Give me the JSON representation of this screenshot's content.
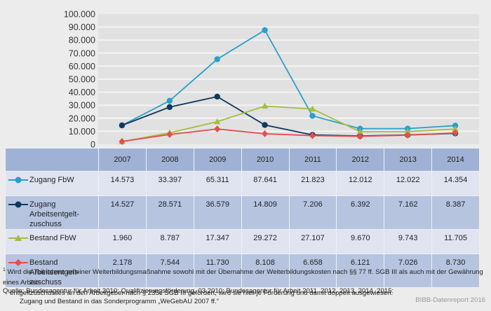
{
  "chart_data": {
    "type": "line",
    "title": "",
    "xlabel": "",
    "ylabel": "",
    "ylim": [
      0,
      100000
    ],
    "y_ticks": [
      0,
      10000,
      20000,
      30000,
      40000,
      50000,
      60000,
      70000,
      80000,
      90000,
      100000
    ],
    "y_tick_labels": [
      "0",
      "10.000",
      "20.000",
      "30.000",
      "40.000",
      "50.000",
      "60.000",
      "70.000",
      "80.000",
      "90.000",
      "100.000"
    ],
    "grid": true,
    "legend_placement": "table-left",
    "categories": [
      "2007",
      "2008",
      "2009",
      "2010",
      "2011",
      "2012",
      "2013",
      "2014"
    ],
    "series": [
      {
        "name": "Zugang FbW",
        "marker": "circle",
        "color": "#2a9fc8",
        "values": [
          14573,
          33397,
          65311,
          87641,
          21823,
          12012,
          12022,
          14354
        ],
        "labels": [
          "14.573",
          "33.397",
          "65.311",
          "87.641",
          "21.823",
          "12.012",
          "12.022",
          "14.354"
        ]
      },
      {
        "name": "Zugang Arbeitsentgelt-zuschuss",
        "marker": "circle",
        "color": "#0d3a5e",
        "values": [
          14527,
          28571,
          36579,
          14809,
          7206,
          6392,
          7162,
          8387
        ],
        "labels": [
          "14.527",
          "28.571",
          "36.579",
          "14.809",
          "7.206",
          "6.392",
          "7.162",
          "8.387"
        ]
      },
      {
        "name": "Bestand FbW",
        "marker": "triangle",
        "color": "#a4bd3c",
        "values": [
          1960,
          8787,
          17347,
          29272,
          27107,
          9670,
          9743,
          11705
        ],
        "labels": [
          "1.960",
          "8.787",
          "17.347",
          "29.272",
          "27.107",
          "9.670",
          "9.743",
          "11.705"
        ]
      },
      {
        "name": "Bestand Arbeitsentgelt-zuschuss",
        "marker": "diamond",
        "color": "#e64d4b",
        "values": [
          2178,
          7544,
          11730,
          8108,
          6658,
          6121,
          7026,
          8730
        ],
        "labels": [
          "2.178",
          "7.544",
          "11.730",
          "8.108",
          "6.658",
          "6.121",
          "7.026",
          "8.730"
        ]
      }
    ]
  },
  "table": {
    "rows": [
      {
        "label_line1": "Zugang FbW",
        "label_line2": ""
      },
      {
        "label_line1": "Zugang Arbeitsentgelt-",
        "label_line2": "zuschuss"
      },
      {
        "label_line1": "Bestand FbW",
        "label_line2": ""
      },
      {
        "label_line1": "Bestand Arbeitsentgelt-",
        "label_line2": "zuschuss"
      }
    ]
  },
  "footnote": {
    "marker": "1",
    "line1": "Wird die Teilnahme an einer Weiterbildungsmaßnahme sowohl mit der Übernahme der Weiterbildungskosten nach §§ 77 ff. SGB III als auch mit der Gewährung eines Arbeit-",
    "line2": "entgeltzuschusses an den Arbeitgeber nach § 235c SGB III gefördert, wird sie hier je Förderung und damit doppelt ausgewiesen."
  },
  "source": {
    "line1": "Quelle: Bundesagentur für Arbeit 2010: Qualifizierungsförderung, 03.2010; Bundesagentur für Arbeit 2011, 2012, 2013, 2014, 2015:",
    "line2": "Zugang und Bestand in das Sonderprogramm „WeGebAU 2007 ff.“"
  },
  "credit": "BIBB-Datenreport 2016"
}
